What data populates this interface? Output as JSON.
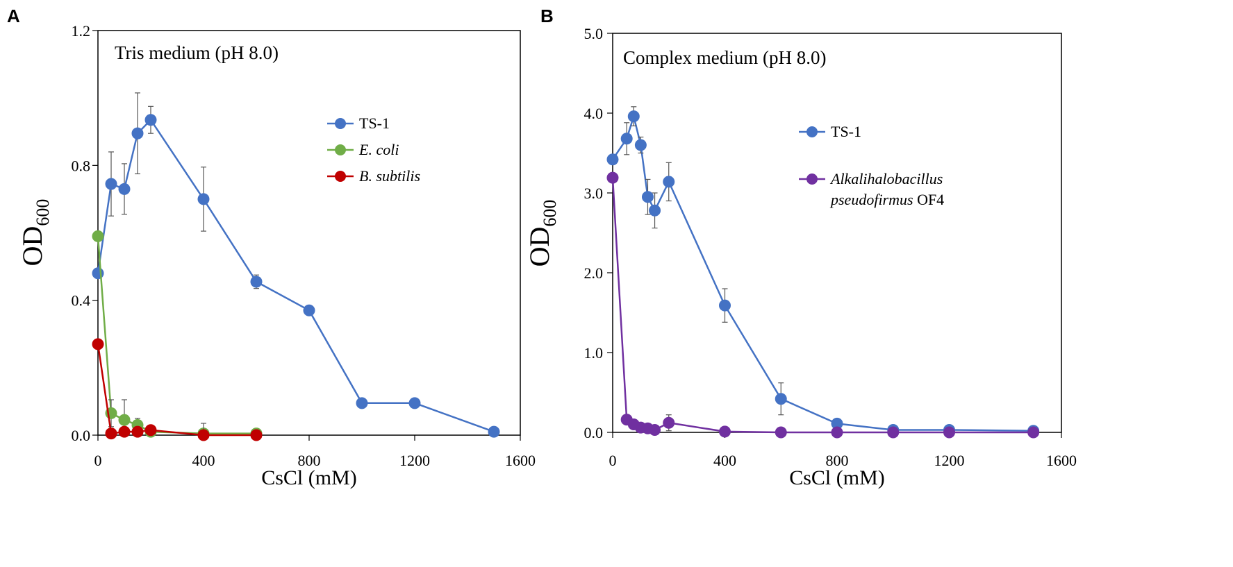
{
  "chart_data": [
    {
      "panel": "A",
      "type": "line",
      "title": "Tris medium (pH 8.0)",
      "xlabel": "CsCl (mM)",
      "ylabel": "OD",
      "ylabel_sub": "600",
      "xlim": [
        0,
        1600
      ],
      "ylim": [
        0,
        1.2
      ],
      "xticks": [
        0,
        400,
        800,
        1200,
        1600
      ],
      "xtick_labels": [
        "0",
        "400",
        "800",
        "1200",
        "1600"
      ],
      "yticks": [
        0,
        0.4,
        0.8,
        1.2
      ],
      "ytick_labels": [
        "0.0",
        "0.4",
        "0.8",
        "1.2"
      ],
      "legend_position": "top-right",
      "series": [
        {
          "name": "TS-1",
          "italic": false,
          "color": "#4472C4",
          "x": [
            0,
            50,
            100,
            150,
            200,
            400,
            600,
            800,
            1000,
            1200,
            1500
          ],
          "y": [
            0.48,
            0.745,
            0.73,
            0.895,
            0.935,
            0.7,
            0.455,
            0.37,
            0.095,
            0.095,
            0.01
          ],
          "err": [
            0.0,
            0.095,
            0.075,
            0.12,
            0.04,
            0.095,
            0.02,
            0.0,
            0.0,
            0.0,
            0.0
          ]
        },
        {
          "name": "E. coli",
          "italic": true,
          "color": "#70AD47",
          "x": [
            0,
            50,
            100,
            150,
            200,
            400,
            600
          ],
          "y": [
            0.59,
            0.065,
            0.045,
            0.03,
            0.01,
            0.005,
            0.005
          ],
          "err": [
            0.0,
            0.04,
            0.06,
            0.02,
            0.0,
            0.0,
            0.0
          ]
        },
        {
          "name": "B. subtilis",
          "italic": true,
          "color": "#C00000",
          "x": [
            0,
            50,
            100,
            150,
            200,
            400,
            600
          ],
          "y": [
            0.27,
            0.005,
            0.01,
            0.01,
            0.015,
            0.0,
            0.0
          ],
          "err": [
            0.0,
            0.0,
            0.0,
            0.0,
            0.0,
            0.035,
            0.015
          ]
        }
      ]
    },
    {
      "panel": "B",
      "type": "line",
      "title": "Complex medium (pH 8.0)",
      "xlabel": "CsCl (mM)",
      "ylabel": "OD",
      "ylabel_sub": "600",
      "xlim": [
        0,
        1600
      ],
      "ylim": [
        0,
        5.0
      ],
      "xticks": [
        0,
        400,
        800,
        1200,
        1600
      ],
      "xtick_labels": [
        "0",
        "400",
        "800",
        "1200",
        "1600"
      ],
      "yticks": [
        0,
        1,
        2,
        3,
        4,
        5
      ],
      "ytick_labels": [
        "0.0",
        "1.0",
        "2.0",
        "3.0",
        "4.0",
        "5.0"
      ],
      "legend_position": "top-right",
      "series": [
        {
          "name": "TS-1",
          "italic": false,
          "color": "#4472C4",
          "x": [
            0,
            50,
            75,
            100,
            125,
            150,
            200,
            400,
            600,
            800,
            1000,
            1200,
            1500
          ],
          "y": [
            3.42,
            3.68,
            3.96,
            3.6,
            2.95,
            2.78,
            3.14,
            1.59,
            0.42,
            0.11,
            0.03,
            0.03,
            0.02
          ],
          "err": [
            0.0,
            0.2,
            0.12,
            0.1,
            0.22,
            0.22,
            0.24,
            0.21,
            0.2,
            0.0,
            0.0,
            0.0,
            0.0
          ]
        },
        {
          "name_parts": [
            "Alkalihalobacillus",
            "pseudofirmus",
            "OF4"
          ],
          "name": "Alkalihalobacillus pseudofirmus OF4",
          "italic": true,
          "color": "#7030A0",
          "x": [
            0,
            50,
            75,
            100,
            125,
            150,
            200,
            400,
            600,
            800,
            1000,
            1200,
            1500
          ],
          "y": [
            3.19,
            0.16,
            0.1,
            0.06,
            0.05,
            0.03,
            0.12,
            0.01,
            0.0,
            0.0,
            0.0,
            0.0,
            0.0
          ],
          "err": [
            0.0,
            0.05,
            0.03,
            0.02,
            0.0,
            0.0,
            0.1,
            0.0,
            0.0,
            0.0,
            0.0,
            0.0,
            0.0
          ]
        }
      ]
    }
  ]
}
